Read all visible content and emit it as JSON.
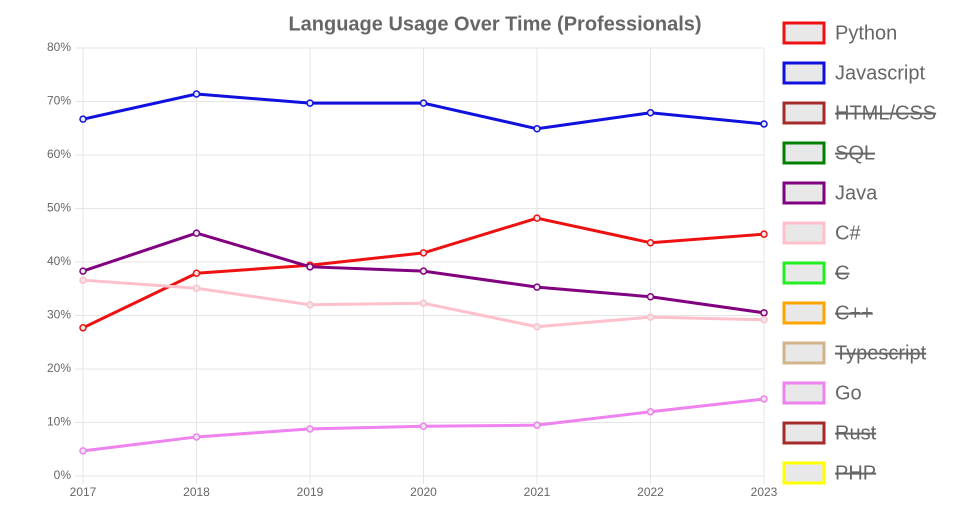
{
  "chart_data": {
    "type": "line",
    "title": "Language Usage Over Time (Professionals)",
    "categories": [
      "2017",
      "2018",
      "2019",
      "2020",
      "2021",
      "2022",
      "2023"
    ],
    "ylim": [
      0,
      80
    ],
    "yticks": [
      {
        "value": 0,
        "label": "0%"
      },
      {
        "value": 10,
        "label": "10%"
      },
      {
        "value": 20,
        "label": "20%"
      },
      {
        "value": 30,
        "label": "30%"
      },
      {
        "value": 40,
        "label": "40%"
      },
      {
        "value": 50,
        "label": "50%"
      },
      {
        "value": 60,
        "label": "60%"
      },
      {
        "value": 70,
        "label": "70%"
      },
      {
        "value": 80,
        "label": "80%"
      }
    ],
    "grid": true,
    "legend": "right",
    "series": [
      {
        "name": "Python",
        "color": "#ee1111",
        "values": [
          27.7,
          37.9,
          39.4,
          41.7,
          48.2,
          43.6,
          45.2
        ]
      },
      {
        "name": "Javascript",
        "color": "#1111dd",
        "values": [
          66.7,
          71.4,
          69.7,
          69.7,
          64.9,
          67.9,
          65.8
        ]
      },
      {
        "name": "HTML/CSS",
        "color": "#a52a2a",
        "hidden": true
      },
      {
        "name": "SQL",
        "color": "#008000",
        "hidden": true
      },
      {
        "name": "Java",
        "color": "#800080",
        "values": [
          38.3,
          45.4,
          39.1,
          38.3,
          35.3,
          33.5,
          30.5
        ]
      },
      {
        "name": "C#",
        "color": "#ffc0cb",
        "values": [
          36.6,
          35.1,
          32.0,
          32.3,
          27.9,
          29.7,
          29.2
        ]
      },
      {
        "name": "C",
        "color": "#22ee22",
        "hidden": true
      },
      {
        "name": "C++",
        "color": "#ffa500",
        "hidden": true
      },
      {
        "name": "Typescript",
        "color": "#d2b48c",
        "hidden": true
      },
      {
        "name": "Go",
        "color": "#ee82ee",
        "values": [
          4.7,
          7.3,
          8.8,
          9.3,
          9.5,
          12.0,
          14.4
        ]
      },
      {
        "name": "Rust",
        "color": "#a52a2a",
        "hidden": true
      },
      {
        "name": "PHP",
        "color": "#ffff00",
        "hidden": true
      }
    ]
  }
}
